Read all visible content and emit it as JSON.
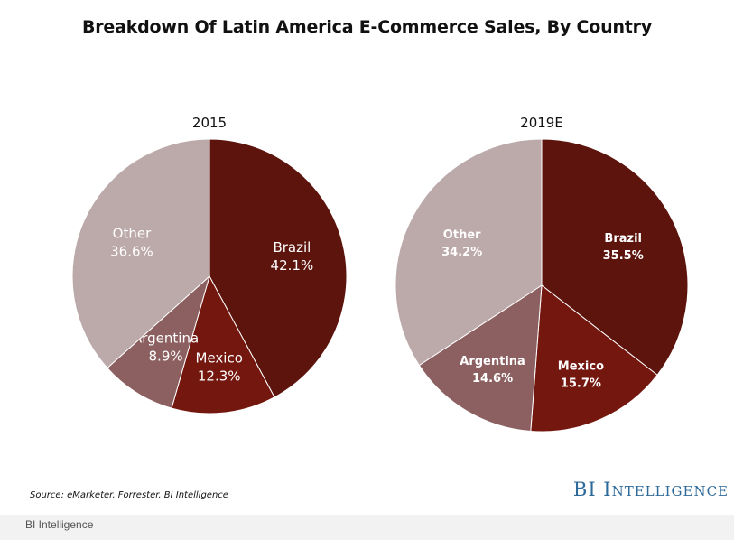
{
  "title": "Breakdown Of Latin America E-Commerce Sales, By Country",
  "source": "Source: eMarketer, Forrester, BI Intelligence",
  "brand": "BI Intelligence",
  "caption": "BI Intelligence",
  "colors": {
    "Brazil": "#5c140d",
    "Mexico": "#73170f",
    "Argentina": "#8c6060",
    "Other": "#bca9a9"
  },
  "chart_data": [
    {
      "type": "pie",
      "title": "2015",
      "unit": "%",
      "slices": [
        {
          "label": "Brazil",
          "value": 42.1
        },
        {
          "label": "Mexico",
          "value": 12.3
        },
        {
          "label": "Argentina",
          "value": 8.9
        },
        {
          "label": "Other",
          "value": 36.6
        }
      ]
    },
    {
      "type": "pie",
      "title": "2019E",
      "unit": "%",
      "slices": [
        {
          "label": "Brazil",
          "value": 35.5
        },
        {
          "label": "Mexico",
          "value": 15.7
        },
        {
          "label": "Argentina",
          "value": 14.6
        },
        {
          "label": "Other",
          "value": 34.2
        }
      ]
    }
  ]
}
